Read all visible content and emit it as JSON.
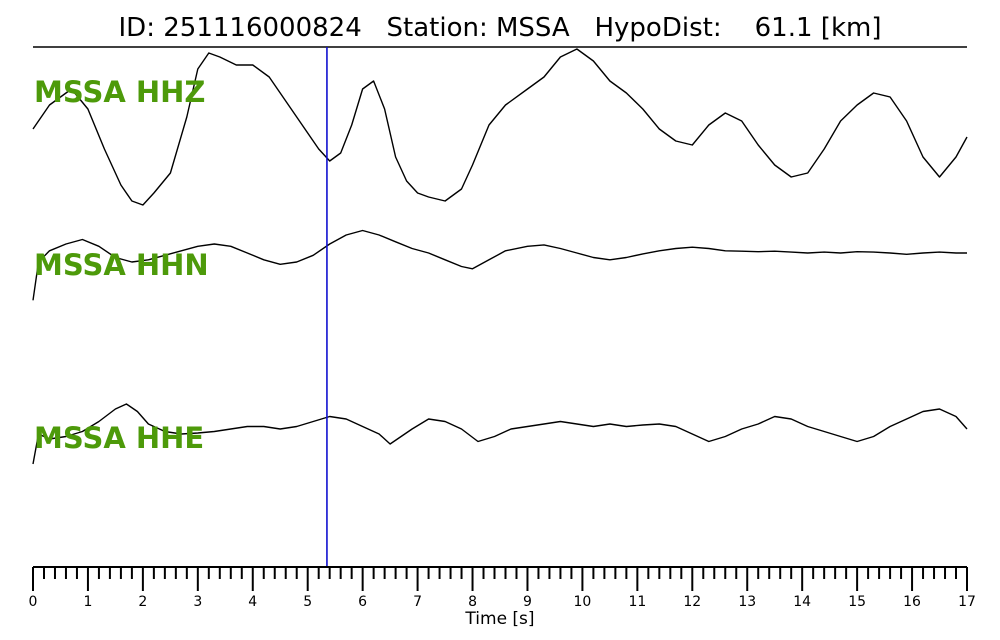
{
  "colors": {
    "trace": "#000000",
    "pick_line": "#1010d0",
    "channel_label": "#4d9a0a"
  },
  "chart_data": {
    "type": "line",
    "title": "ID: 251116000824   Station: MSSA   HypoDist:    61.1 [km]",
    "xlabel": "Time [s]",
    "xlim": [
      0,
      17
    ],
    "xticks": [
      0,
      1,
      2,
      3,
      4,
      5,
      6,
      7,
      8,
      9,
      10,
      11,
      12,
      13,
      14,
      15,
      16,
      17
    ],
    "minor_tick_step": 0.2,
    "pick_time": 5.35,
    "ylim_per_trace": [
      -1,
      1
    ],
    "series": [
      {
        "name": "MSSA HHZ",
        "x": [
          0,
          0.3,
          0.7,
          1.0,
          1.3,
          1.6,
          1.8,
          2.0,
          2.2,
          2.5,
          2.8,
          3.0,
          3.2,
          3.4,
          3.7,
          4.0,
          4.3,
          4.6,
          4.9,
          5.2,
          5.4,
          5.6,
          5.8,
          6.0,
          6.2,
          6.4,
          6.6,
          6.8,
          7.0,
          7.2,
          7.5,
          7.8,
          8.0,
          8.3,
          8.6,
          9.0,
          9.3,
          9.6,
          9.9,
          10.2,
          10.5,
          10.8,
          11.1,
          11.4,
          11.7,
          12.0,
          12.3,
          12.6,
          12.9,
          13.2,
          13.5,
          13.8,
          14.1,
          14.4,
          14.7,
          15.0,
          15.3,
          15.6,
          15.9,
          16.2,
          16.5,
          16.8,
          17.0
        ],
        "y": [
          0.05,
          0.35,
          0.55,
          0.3,
          -0.2,
          -0.65,
          -0.85,
          -0.9,
          -0.75,
          -0.5,
          0.2,
          0.8,
          1.0,
          0.95,
          0.85,
          0.85,
          0.7,
          0.4,
          0.1,
          -0.2,
          -0.35,
          -0.25,
          0.1,
          0.55,
          0.65,
          0.3,
          -0.3,
          -0.6,
          -0.75,
          -0.8,
          -0.85,
          -0.7,
          -0.4,
          0.1,
          0.35,
          0.55,
          0.7,
          0.95,
          1.05,
          0.9,
          0.65,
          0.5,
          0.3,
          0.05,
          -0.1,
          -0.15,
          0.1,
          0.25,
          0.15,
          -0.15,
          -0.4,
          -0.55,
          -0.5,
          -0.2,
          0.15,
          0.35,
          0.5,
          0.45,
          0.15,
          -0.3,
          -0.55,
          -0.3,
          -0.05
        ]
      },
      {
        "name": "MSSA HHN",
        "x": [
          0,
          0.1,
          0.3,
          0.6,
          0.9,
          1.2,
          1.5,
          1.8,
          2.1,
          2.4,
          2.7,
          3.0,
          3.3,
          3.6,
          3.9,
          4.2,
          4.5,
          4.8,
          5.1,
          5.4,
          5.7,
          6.0,
          6.3,
          6.6,
          6.9,
          7.2,
          7.5,
          7.8,
          8.0,
          8.3,
          8.6,
          9.0,
          9.3,
          9.6,
          9.9,
          10.2,
          10.5,
          10.8,
          11.1,
          11.4,
          11.7,
          12.0,
          12.3,
          12.6,
          12.9,
          13.2,
          13.5,
          13.8,
          14.1,
          14.4,
          14.7,
          15.0,
          15.3,
          15.6,
          15.9,
          16.2,
          16.5,
          16.8,
          17.0
        ],
        "y": [
          -0.85,
          0.0,
          0.25,
          0.4,
          0.5,
          0.35,
          0.1,
          0.0,
          0.05,
          0.15,
          0.25,
          0.35,
          0.4,
          0.35,
          0.2,
          0.05,
          -0.05,
          0.0,
          0.15,
          0.4,
          0.6,
          0.7,
          0.6,
          0.45,
          0.3,
          0.2,
          0.05,
          -0.1,
          -0.15,
          0.05,
          0.25,
          0.35,
          0.38,
          0.3,
          0.2,
          0.1,
          0.05,
          0.1,
          0.18,
          0.25,
          0.3,
          0.33,
          0.3,
          0.25,
          0.24,
          0.23,
          0.24,
          0.22,
          0.2,
          0.22,
          0.2,
          0.23,
          0.22,
          0.2,
          0.17,
          0.2,
          0.22,
          0.2,
          0.2
        ]
      },
      {
        "name": "MSSA HHE",
        "x": [
          0,
          0.1,
          0.3,
          0.6,
          0.9,
          1.2,
          1.5,
          1.7,
          1.9,
          2.1,
          2.4,
          2.7,
          3.0,
          3.3,
          3.6,
          3.9,
          4.2,
          4.5,
          4.8,
          5.1,
          5.4,
          5.7,
          6.0,
          6.3,
          6.5,
          6.7,
          6.9,
          7.2,
          7.5,
          7.8,
          8.1,
          8.4,
          8.7,
          9.0,
          9.3,
          9.6,
          9.9,
          10.2,
          10.5,
          10.8,
          11.1,
          11.4,
          11.7,
          12.0,
          12.3,
          12.6,
          12.9,
          13.2,
          13.5,
          13.8,
          14.1,
          14.4,
          14.7,
          15.0,
          15.3,
          15.6,
          15.9,
          16.2,
          16.5,
          16.8,
          17.0
        ],
        "y": [
          -0.6,
          0.0,
          -0.1,
          -0.05,
          0.05,
          0.25,
          0.5,
          0.6,
          0.45,
          0.2,
          0.05,
          0.0,
          0.02,
          0.05,
          0.1,
          0.15,
          0.15,
          0.1,
          0.15,
          0.25,
          0.35,
          0.3,
          0.15,
          0.0,
          -0.2,
          -0.05,
          0.1,
          0.3,
          0.25,
          0.1,
          -0.15,
          -0.05,
          0.1,
          0.15,
          0.2,
          0.25,
          0.2,
          0.15,
          0.2,
          0.15,
          0.18,
          0.2,
          0.15,
          0.0,
          -0.15,
          -0.05,
          0.1,
          0.2,
          0.35,
          0.3,
          0.15,
          0.05,
          -0.05,
          -0.15,
          -0.05,
          0.15,
          0.3,
          0.45,
          0.5,
          0.35,
          0.1
        ]
      }
    ]
  }
}
